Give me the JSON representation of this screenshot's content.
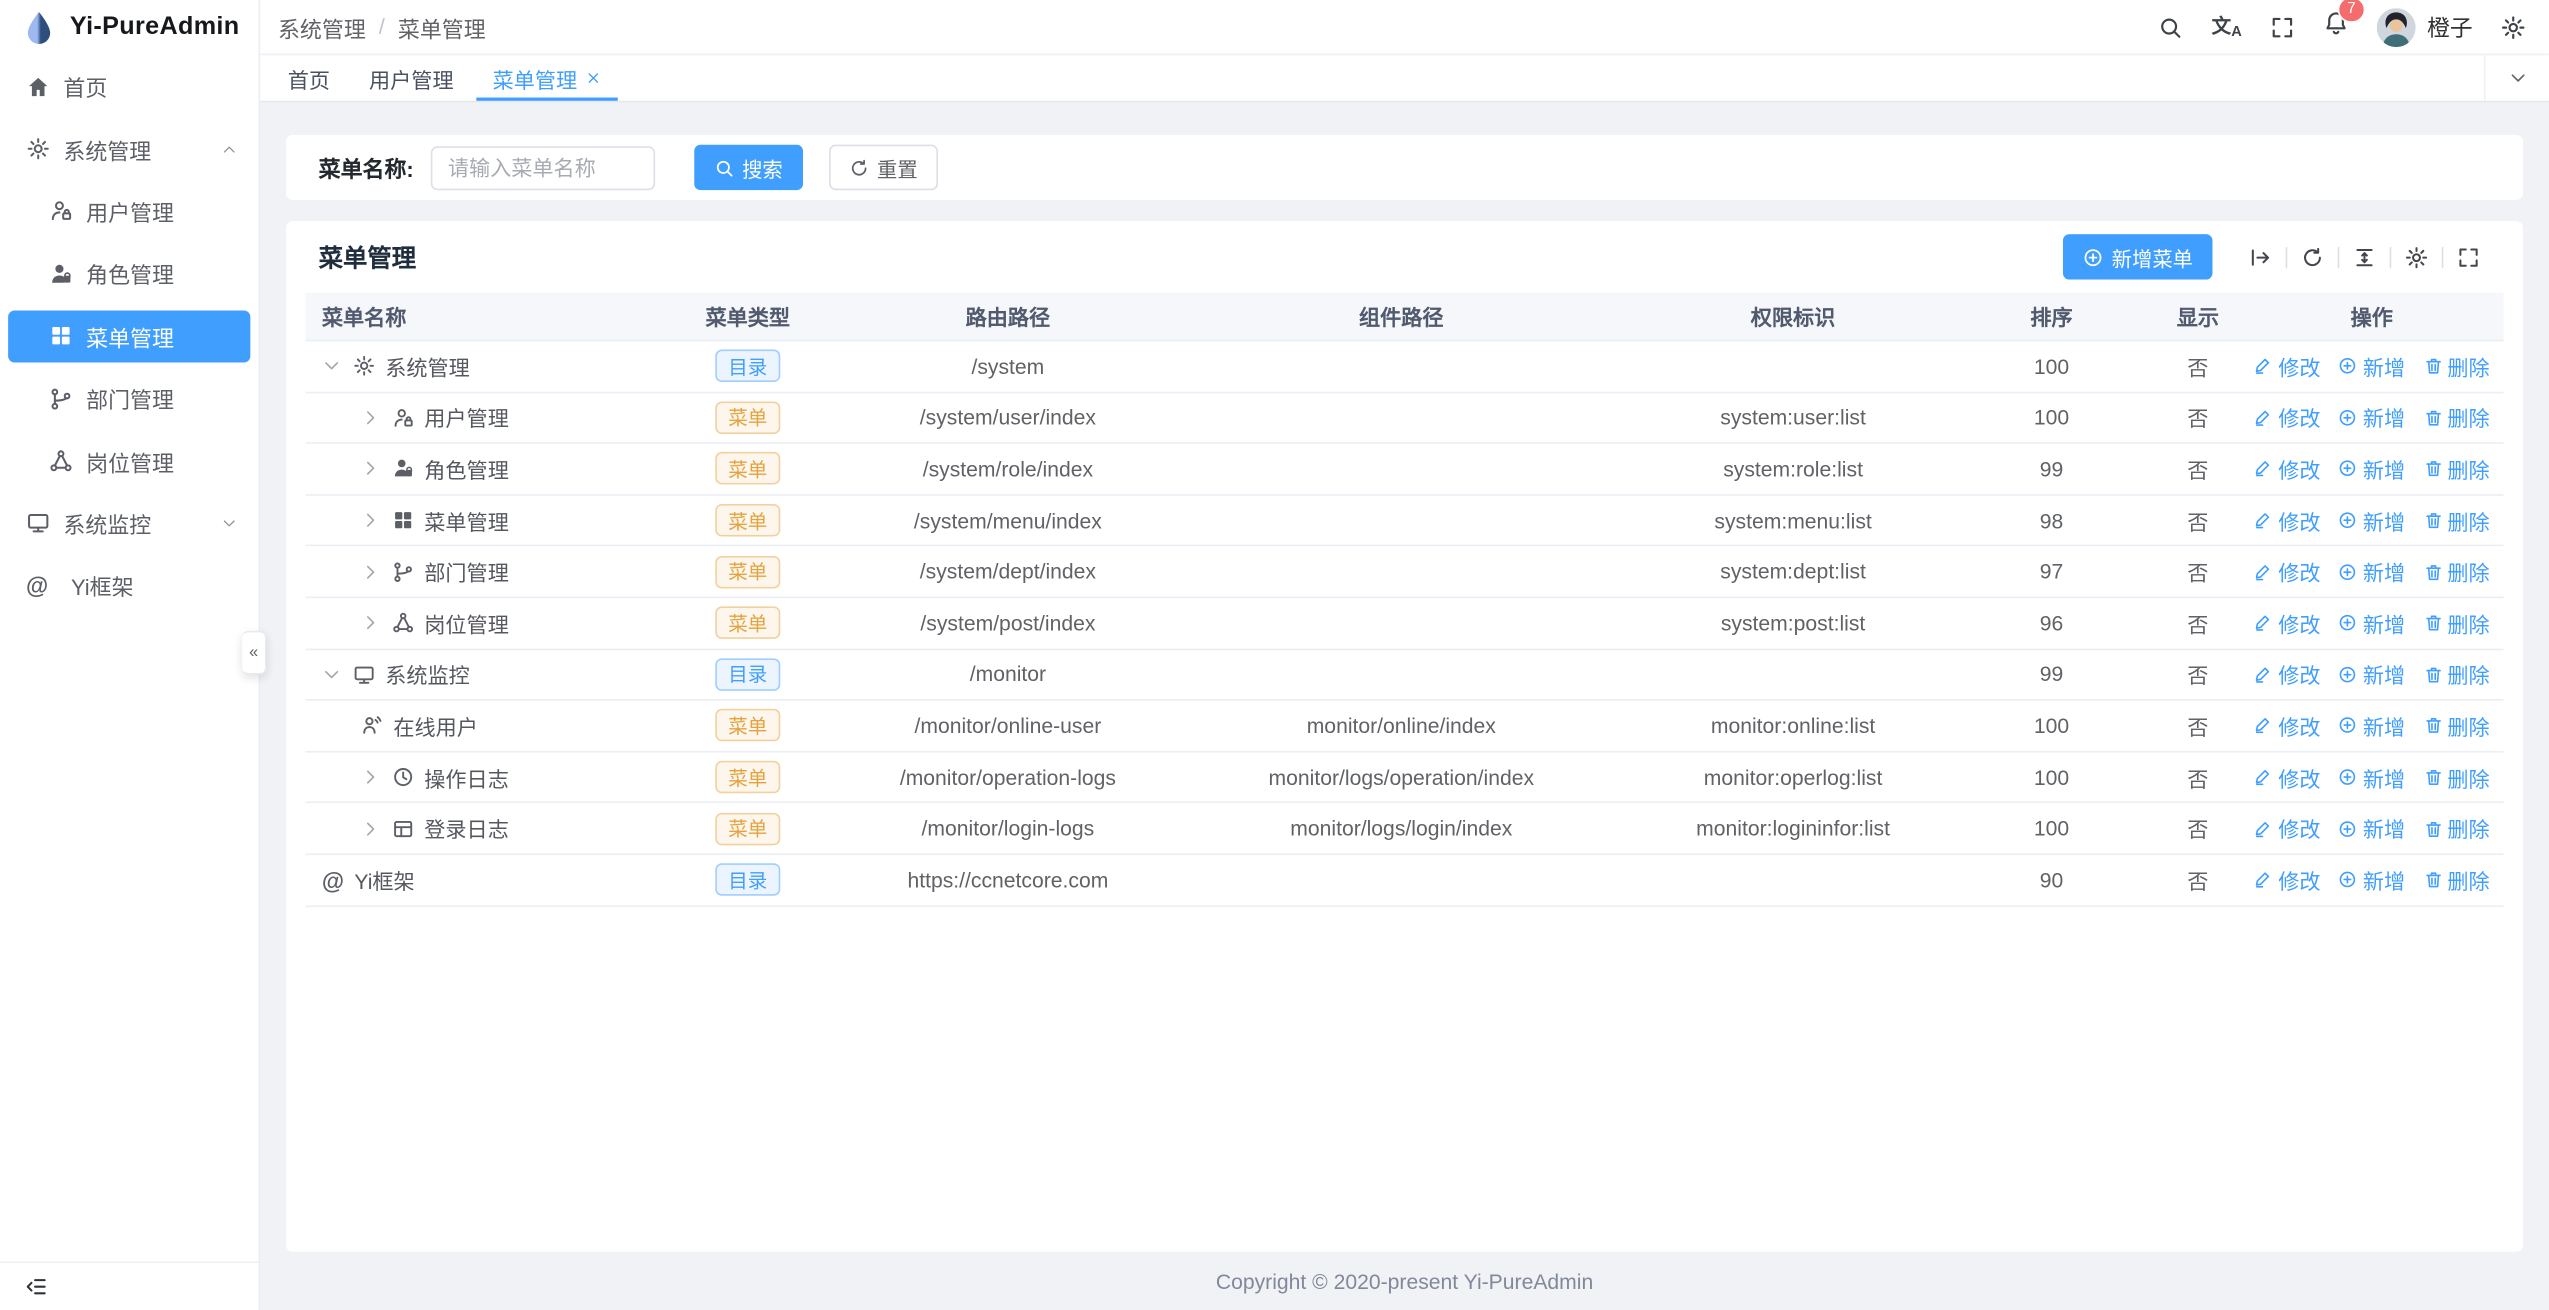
{
  "app": {
    "title": "Yi-PureAdmin",
    "logo_icon": "drop"
  },
  "colors": {
    "primary": "#409eff",
    "warning": "#e6a23c",
    "badge": "#f56c6c",
    "content_bg": "#f0f2f5"
  },
  "header": {
    "breadcrumb": [
      "系统管理",
      "菜单管理"
    ],
    "separator": "/",
    "action_icons": [
      "search",
      "translate",
      "fullscreen",
      "bell"
    ],
    "badge": "7",
    "user": "橙子",
    "settings_icon": "gear"
  },
  "sidebar": {
    "items": [
      {
        "icon": "home",
        "label": "首页",
        "level": 0
      },
      {
        "icon": "gear",
        "label": "系统管理",
        "level": 0,
        "chevron": "up"
      },
      {
        "icon": "user-lock",
        "label": "用户管理",
        "level": 1
      },
      {
        "icon": "user-filled",
        "label": "角色管理",
        "level": 1
      },
      {
        "icon": "grid",
        "label": "菜单管理",
        "level": 1,
        "active": true
      },
      {
        "icon": "branch",
        "label": "部门管理",
        "level": 1
      },
      {
        "icon": "hub",
        "label": "岗位管理",
        "level": 1
      },
      {
        "icon": "monitor",
        "label": "系统监控",
        "level": 0,
        "chevron": "down"
      },
      {
        "icon": "at",
        "label": "Yi框架",
        "level": 0
      }
    ],
    "fold_icon": "fold",
    "collapse_glyph": "«"
  },
  "tabs": [
    {
      "label": "首页"
    },
    {
      "label": "用户管理"
    },
    {
      "label": "菜单管理",
      "active": true,
      "closable": true
    }
  ],
  "search": {
    "label": "菜单名称:",
    "placeholder": "请输入菜单名称",
    "search_btn": "搜索",
    "reset_btn": "重置"
  },
  "card": {
    "title": "菜单管理",
    "add_btn": "新增菜单",
    "toolbar_icons": [
      "arrow-bar-right",
      "refresh",
      "density",
      "gear",
      "fullscreen"
    ]
  },
  "table": {
    "columns": [
      "菜单名称",
      "菜单类型",
      "路由路径",
      "组件路径",
      "权限标识",
      "排序",
      "显示",
      "操作"
    ],
    "tag_labels": {
      "dir": "目录",
      "menu": "菜单"
    },
    "ops": [
      {
        "label": "修改",
        "icon": "edit"
      },
      {
        "label": "新增",
        "icon": "plus-circle"
      },
      {
        "label": "删除",
        "icon": "trash"
      }
    ],
    "rows": [
      {
        "level": 0,
        "arrow": "down",
        "icon": "gear",
        "name": "系统管理",
        "type": "dir",
        "route": "/system",
        "component": "",
        "perm": "",
        "sort": "100",
        "show": "否"
      },
      {
        "level": 1,
        "arrow": "right",
        "icon": "user-lock",
        "name": "用户管理",
        "type": "menu",
        "route": "/system/user/index",
        "component": "",
        "perm": "system:user:list",
        "sort": "100",
        "show": "否"
      },
      {
        "level": 1,
        "arrow": "right",
        "icon": "user-filled",
        "name": "角色管理",
        "type": "menu",
        "route": "/system/role/index",
        "component": "",
        "perm": "system:role:list",
        "sort": "99",
        "show": "否"
      },
      {
        "level": 1,
        "arrow": "right",
        "icon": "grid",
        "name": "菜单管理",
        "type": "menu",
        "route": "/system/menu/index",
        "component": "",
        "perm": "system:menu:list",
        "sort": "98",
        "show": "否"
      },
      {
        "level": 1,
        "arrow": "right",
        "icon": "branch",
        "name": "部门管理",
        "type": "menu",
        "route": "/system/dept/index",
        "component": "",
        "perm": "system:dept:list",
        "sort": "97",
        "show": "否"
      },
      {
        "level": 1,
        "arrow": "right",
        "icon": "hub",
        "name": "岗位管理",
        "type": "menu",
        "route": "/system/post/index",
        "component": "",
        "perm": "system:post:list",
        "sort": "96",
        "show": "否"
      },
      {
        "level": 0,
        "arrow": "down",
        "icon": "monitor",
        "name": "系统监控",
        "type": "dir",
        "route": "/monitor",
        "component": "",
        "perm": "",
        "sort": "99",
        "show": "否"
      },
      {
        "level": 1,
        "arrow": "",
        "icon": "user-signal",
        "name": "在线用户",
        "type": "menu",
        "route": "/monitor/online-user",
        "component": "monitor/online/index",
        "perm": "monitor:online:list",
        "sort": "100",
        "show": "否"
      },
      {
        "level": 1,
        "arrow": "right",
        "icon": "clock",
        "name": "操作日志",
        "type": "menu",
        "route": "/monitor/operation-logs",
        "component": "monitor/logs/operation/index",
        "perm": "monitor:operlog:list",
        "sort": "100",
        "show": "否"
      },
      {
        "level": 1,
        "arrow": "right",
        "icon": "calendar",
        "name": "登录日志",
        "type": "menu",
        "route": "/monitor/login-logs",
        "component": "monitor/logs/login/index",
        "perm": "monitor:logininfor:list",
        "sort": "100",
        "show": "否"
      },
      {
        "level": 0,
        "arrow": "",
        "icon": "at",
        "name": "Yi框架",
        "type": "dir",
        "route": "https://ccnetcore.com",
        "component": "",
        "perm": "",
        "sort": "90",
        "show": "否"
      }
    ]
  },
  "footer": {
    "copyright": "Copyright © 2020-present Yi-PureAdmin"
  }
}
